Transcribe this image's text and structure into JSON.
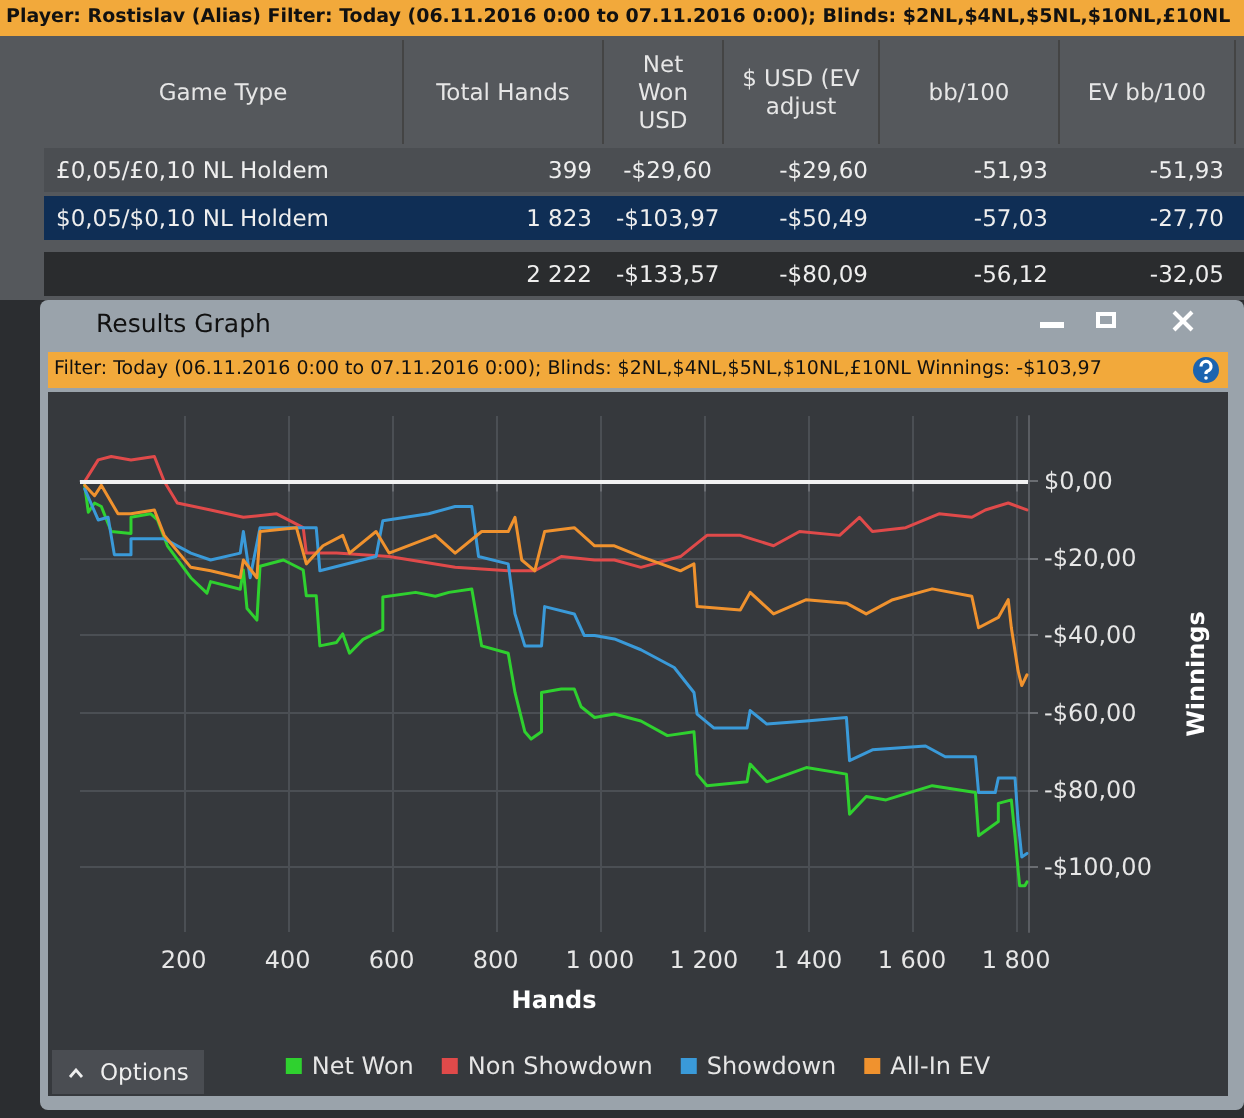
{
  "chart_data": [
    {
      "type": "other",
      "title": "Player: Rostislav (Alias)  Filter: Today (06.11.2016 0:00 to 07.11.2016 0:00); Blinds: $2NL,$4NL,$5NL,$10NL,£10NL",
      "categories": [
        "Game Type",
        "Total Hands",
        "Net Won USD",
        "$ USD (EV adjust",
        "bb/100",
        "EV bb/100"
      ],
      "annotations": [
        "£0,05/£0,10 NL Holdem",
        "399",
        "-$29,60",
        "-$29,60",
        "-51,93",
        "-51,93",
        "$0,05/$0,10 NL Holdem",
        "1 823",
        "-$103,97",
        "-$50,49",
        "-57,03",
        "-27,70",
        null,
        "2 222",
        "-$133,57",
        "-$80,09",
        "-56,12",
        "-32,05"
      ]
    },
    {
      "type": "line",
      "title": "Results Graph",
      "subtitle": "Filter: Today (06.11.2016 0:00 to 07.11.2016 0:00); Blinds: $2NL,$4NL,$5NL,$10NL,£10NL Winnings: -$103,97",
      "xlabel": "Hands",
      "ylabel": "Winnings",
      "annotations": [
        "Options"
      ],
      "xlim": [
        1,
        1823
      ],
      "xticks": [
        200,
        400,
        600,
        800,
        {
          "value": 1000,
          "label": "1 000"
        },
        {
          "value": 1200,
          "label": "1 200"
        },
        {
          "value": 1400,
          "label": "1 400"
        },
        {
          "value": 1600,
          "label": "1 600"
        },
        {
          "value": 1800,
          "label": "1 800"
        }
      ],
      "ylim": [
        -117,
        17
      ],
      "yticks": [
        {
          "value": 0,
          "label": "$0,00"
        },
        {
          "value": -20,
          "label": "-$20,00"
        },
        {
          "value": -40,
          "label": "-$40,00"
        },
        {
          "value": -60,
          "label": "-$60,00"
        },
        {
          "value": -80,
          "label": "-$80,00"
        },
        {
          "value": -100,
          "label": "-$100,00"
        }
      ],
      "grid": true,
      "legend": "bottom",
      "marker": "none",
      "line_style": "solid",
      "ref_lines": [
        {
          "axis": "y",
          "value": 0,
          "color": "#f2f2f2"
        }
      ],
      "series": [
        {
          "name": "Net Won",
          "color": "#2fd12f",
          "x": [
            10,
            17,
            29,
            42,
            61,
            99,
            99,
            137,
            150,
            169,
            214,
            245,
            252,
            309,
            315,
            322,
            341,
            347,
            392,
            430,
            436,
            455,
            462,
            494,
            506,
            519,
            545,
            583,
            583,
            646,
            684,
            710,
            754,
            773,
            824,
            837,
            856,
            868,
            888,
            888,
            926,
            951,
            964,
            990,
            1028,
            1079,
            1130,
            1181,
            1187,
            1206,
            1283,
            1289,
            1321,
            1397,
            1474,
            1480,
            1512,
            1550,
            1639,
            1722,
            1728,
            1766,
            1766,
            1791,
            1798,
            1804,
            1807,
            1817,
            1821
          ],
          "values": [
            -1,
            -8,
            -5.6,
            -6.5,
            -13,
            -13.5,
            -9.3,
            -8.4,
            -10,
            -16.7,
            -25,
            -29,
            -26,
            -28,
            -23,
            -33,
            -36,
            -22,
            -20.4,
            -23,
            -29.7,
            -29.7,
            -42.7,
            -41.8,
            -39.6,
            -44.6,
            -41,
            -38.5,
            -30,
            -28.8,
            -29.8,
            -28.8,
            -27.9,
            -42.7,
            -44.6,
            -54.8,
            -65,
            -66.9,
            -65,
            -54.8,
            -53.9,
            -53.9,
            -58.5,
            -61.3,
            -60.4,
            -62.2,
            -66,
            -65,
            -76,
            -79,
            -78,
            -73.4,
            -78,
            -74.3,
            -76,
            -86.4,
            -81.8,
            -82.7,
            -79,
            -80.8,
            -92,
            -88.3,
            -83.6,
            -82.7,
            -92,
            -101,
            -105,
            -105,
            -104
          ]
        },
        {
          "name": "Non Showdown",
          "color": "#e04a4a",
          "x": [
            10,
            36,
            61,
            99,
            144,
            163,
            188,
            252,
            315,
            379,
            430,
            436,
            494,
            595,
            722,
            824,
            875,
            926,
            990,
            1028,
            1079,
            1155,
            1206,
            1270,
            1334,
            1384,
            1461,
            1499,
            1524,
            1588,
            1652,
            1715,
            1741,
            1785,
            1821
          ],
          "values": [
            0,
            5.6,
            6.5,
            5.6,
            6.5,
            0,
            -5.6,
            -7.4,
            -9.3,
            -8.4,
            -12,
            -18.6,
            -18.6,
            -19.5,
            -22.3,
            -23.2,
            -23.2,
            -19.5,
            -20.4,
            -20.4,
            -22.3,
            -19.5,
            -14,
            -14,
            -16.7,
            -13,
            -14,
            -9.3,
            -13,
            -12,
            -8.4,
            -9.3,
            -7.4,
            -5.6,
            -7.4
          ]
        },
        {
          "name": "Showdown",
          "color": "#3a9ad9",
          "x": [
            10,
            36,
            55,
            67,
            99,
            99,
            163,
            214,
            252,
            309,
            315,
            328,
            347,
            455,
            462,
            570,
            583,
            671,
            722,
            754,
            767,
            824,
            837,
            856,
            888,
            894,
            951,
            970,
            990,
            1028,
            1079,
            1143,
            1181,
            1187,
            1219,
            1283,
            1289,
            1321,
            1397,
            1474,
            1480,
            1524,
            1626,
            1664,
            1722,
            1728,
            1760,
            1766,
            1798,
            1804,
            1811,
            1821
          ],
          "values": [
            -1.9,
            -10,
            -9.3,
            -19,
            -19,
            -14.9,
            -14.9,
            -18.6,
            -20.4,
            -18.6,
            -13,
            -25,
            -12,
            -12,
            -23.2,
            -19.5,
            -10.2,
            -8.4,
            -6.5,
            -6.5,
            -19.5,
            -21.4,
            -34.4,
            -42.7,
            -42.7,
            -32.5,
            -34.4,
            -40,
            -40,
            -40.9,
            -43.7,
            -48.3,
            -54.8,
            -60.4,
            -64,
            -64,
            -59.5,
            -63,
            -62.2,
            -61.3,
            -72.5,
            -69.7,
            -68.7,
            -71.5,
            -71.5,
            -80.8,
            -80.8,
            -77,
            -77,
            -88.3,
            -97.5,
            -96.6
          ]
        },
        {
          "name": "All-In EV",
          "color": "#f0922e",
          "x": [
            10,
            29,
            42,
            74,
            99,
            144,
            163,
            214,
            252,
            309,
            315,
            341,
            347,
            417,
            436,
            468,
            506,
            519,
            570,
            595,
            684,
            722,
            773,
            824,
            837,
            850,
            875,
            894,
            951,
            990,
            1028,
            1079,
            1155,
            1181,
            1187,
            1270,
            1289,
            1334,
            1397,
            1474,
            1512,
            1563,
            1639,
            1715,
            1728,
            1766,
            1785,
            1791,
            1804,
            1811,
            1821
          ],
          "values": [
            -1,
            -3.7,
            -1,
            -8.4,
            -8.4,
            -7.4,
            -14,
            -22.3,
            -23.2,
            -25,
            -20.4,
            -25,
            -13,
            -12,
            -21.4,
            -16.7,
            -14,
            -18.6,
            -13,
            -18.6,
            -14,
            -18.6,
            -13,
            -13,
            -9.3,
            -20.4,
            -23.2,
            -13,
            -12,
            -16.7,
            -16.7,
            -19.5,
            -23.2,
            -21.4,
            -32.5,
            -33.4,
            -28.8,
            -34.4,
            -30.7,
            -31.6,
            -34.4,
            -30.7,
            -27.9,
            -29.8,
            -38,
            -35.3,
            -30.7,
            -38,
            -49.2,
            -53,
            -50.2
          ]
        }
      ]
    }
  ]
}
